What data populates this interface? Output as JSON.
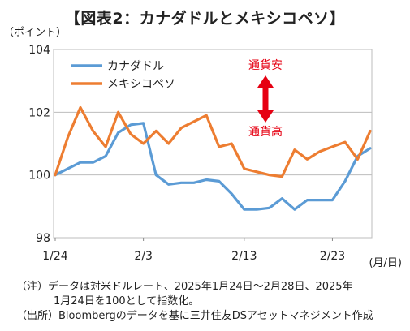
{
  "title": "【図表2：カナダドルとメキシコペソ】",
  "chart_data": {
    "type": "line",
    "ylabel": "（ポイント）",
    "xlabel": "(月/日)",
    "ylim": [
      98,
      104
    ],
    "yticks": [
      "98",
      "100",
      "102",
      "104"
    ],
    "xticks": [
      {
        "label": "1/24",
        "x": 0
      },
      {
        "label": "2/3",
        "x": 7
      },
      {
        "label": "2/13",
        "x": 15
      },
      {
        "label": "2/23",
        "x": 22
      }
    ],
    "xmax": 25,
    "grid": true,
    "legend_position": "top-left",
    "series": [
      {
        "name": "カナダドル",
        "color": "#5b9bd5",
        "x": [
          0,
          1,
          2,
          3,
          4,
          5,
          6,
          7,
          8,
          9,
          10,
          11,
          12,
          13,
          14,
          15,
          16,
          17,
          18,
          19,
          20,
          21,
          22,
          23,
          24,
          25
        ],
        "values": [
          100.0,
          100.2,
          100.4,
          100.4,
          100.6,
          101.35,
          101.6,
          101.65,
          100.0,
          99.7,
          99.75,
          99.75,
          99.85,
          99.8,
          99.4,
          98.9,
          98.9,
          98.95,
          99.25,
          98.9,
          99.2,
          99.2,
          99.2,
          99.8,
          100.6,
          100.85
        ]
      },
      {
        "name": "メキシコペソ",
        "color": "#ed7d31",
        "x": [
          0,
          1,
          2,
          3,
          4,
          5,
          6,
          7,
          8,
          9,
          10,
          11,
          12,
          13,
          14,
          15,
          16,
          17,
          18,
          19,
          20,
          21,
          22,
          23,
          24,
          25
        ],
        "values": [
          100.0,
          101.2,
          102.15,
          101.4,
          100.9,
          102.0,
          101.3,
          101.0,
          101.4,
          101.0,
          101.5,
          101.7,
          101.9,
          100.9,
          101.0,
          100.2,
          100.1,
          100.0,
          99.95,
          100.8,
          100.5,
          100.75,
          100.9,
          101.05,
          100.5,
          101.4
        ]
      }
    ],
    "annotations": {
      "top": "通貨安",
      "bottom": "通貨高",
      "arrow_color": "#e60012"
    }
  },
  "notes": {
    "line1": "（注）データは対米ドルレート、2025年1月24日～2月28日、2025年",
    "line2": "1月24日を100として指数化。",
    "line3": "（出所）Bloombergのデータを基に三井住友DSアセットマネジメント作成"
  }
}
